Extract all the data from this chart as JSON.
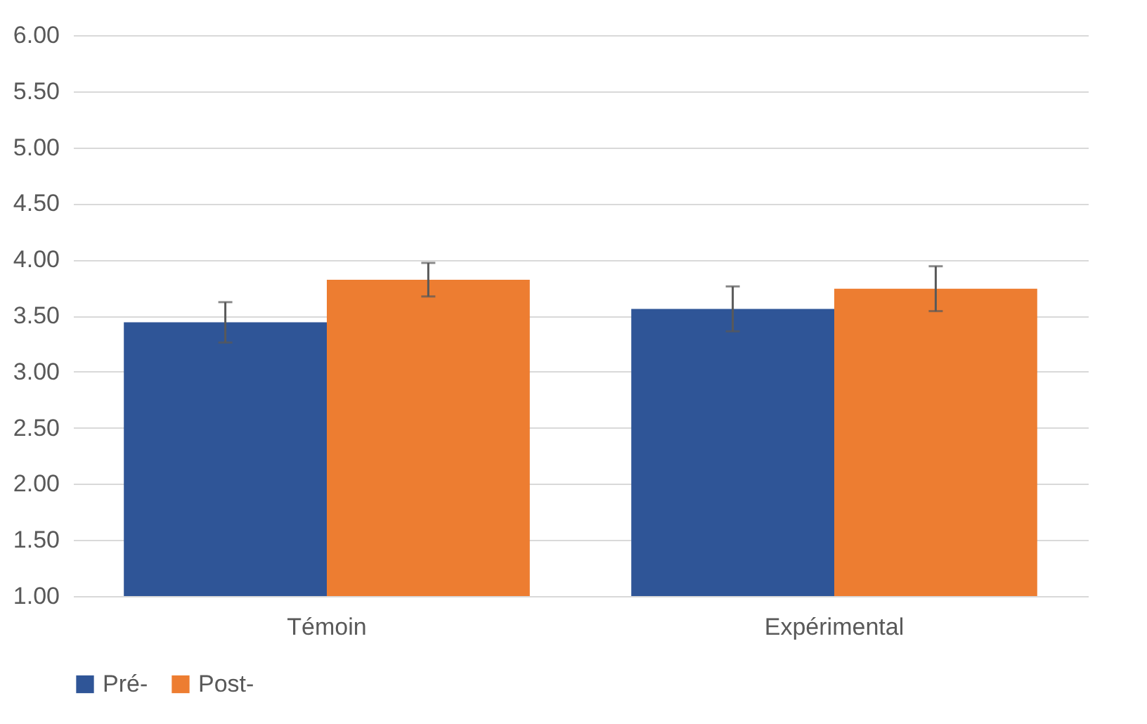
{
  "chart_data": {
    "type": "bar",
    "categories": [
      "Témoin",
      "Expérimental"
    ],
    "series": [
      {
        "name": "Pré-",
        "color": "#2f5597",
        "values": [
          3.44,
          3.56
        ],
        "errors": [
          0.18,
          0.2
        ]
      },
      {
        "name": "Post-",
        "color": "#ed7d31",
        "values": [
          3.82,
          3.74
        ],
        "errors": [
          0.15,
          0.2
        ]
      }
    ],
    "ylim": [
      1,
      6
    ],
    "yticks": [
      {
        "value": 1,
        "label": "1.00"
      },
      {
        "value": 1.5,
        "label": "1.50"
      },
      {
        "value": 2,
        "label": "2.00"
      },
      {
        "value": 2.5,
        "label": "2.50"
      },
      {
        "value": 3,
        "label": "3.00"
      },
      {
        "value": 3.5,
        "label": "3.50"
      },
      {
        "value": 4,
        "label": "4.00"
      },
      {
        "value": 4.5,
        "label": "4.50"
      },
      {
        "value": 5,
        "label": "5.00"
      },
      {
        "value": 5.5,
        "label": "5.50"
      },
      {
        "value": 6,
        "label": "6.00"
      }
    ],
    "grid": "y",
    "legend": "bottom"
  }
}
